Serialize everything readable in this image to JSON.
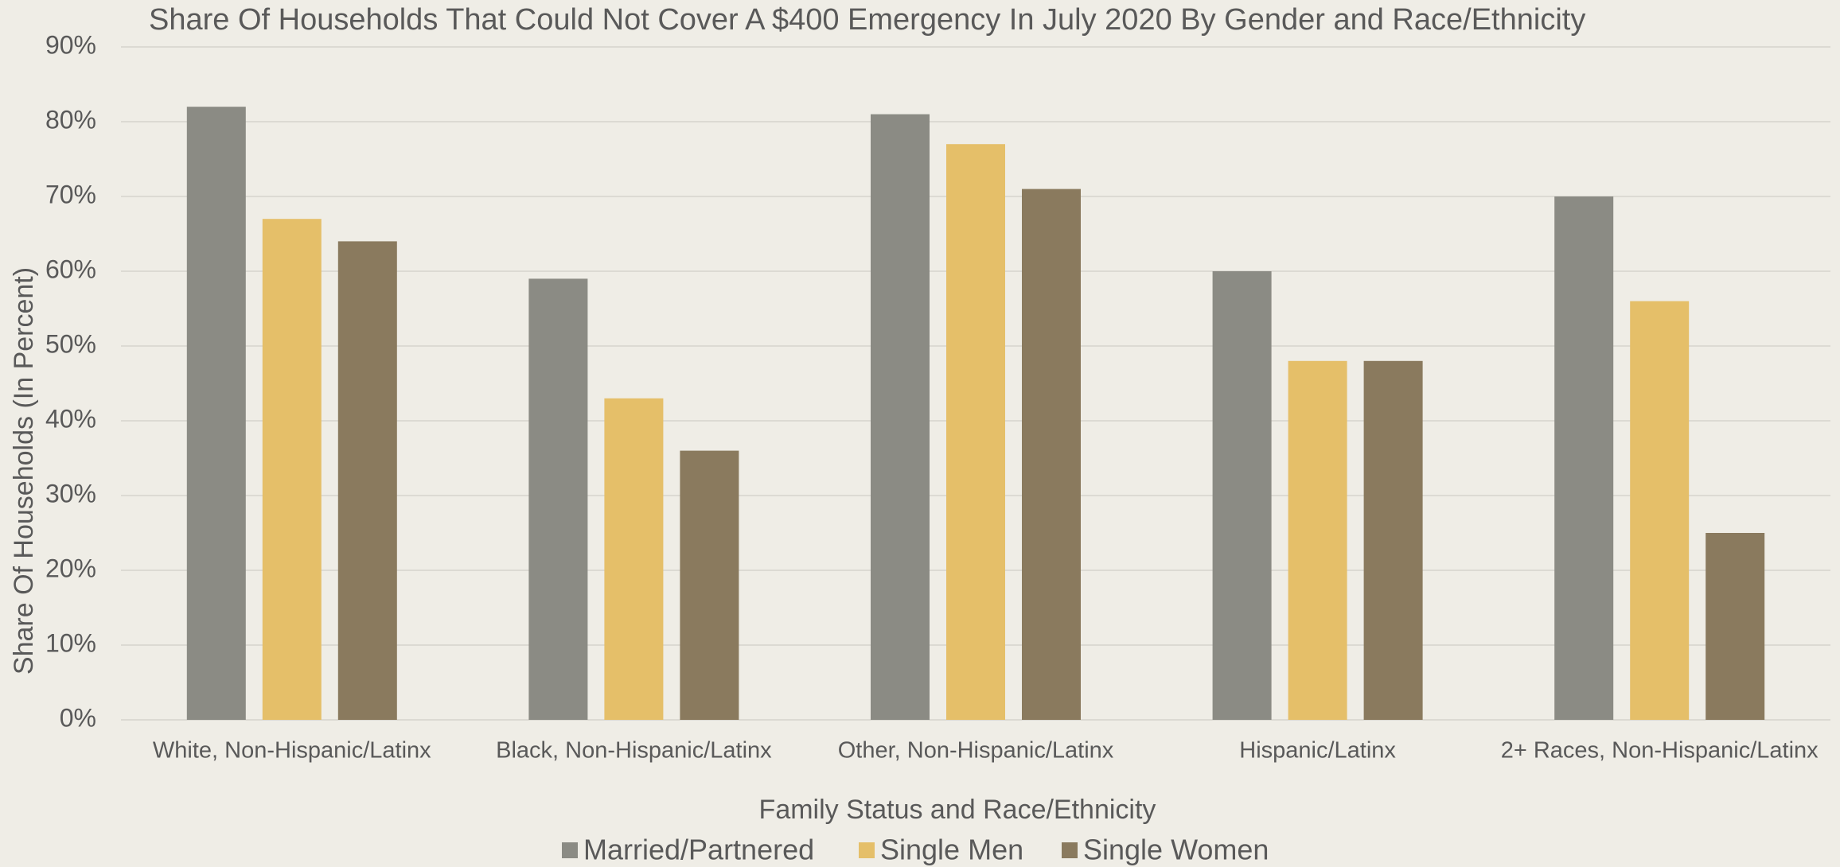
{
  "chart_data": {
    "type": "bar",
    "title": "Share Of Households That Could Not Cover A $400 Emergency In July 2020 By Gender and Race/Ethnicity",
    "x_label": "Family Status and Race/Ethnicity",
    "y_label": "Share Of Households (In Percent)",
    "categories": [
      "White, Non-Hispanic/Latinx",
      "Black, Non-Hispanic/Latinx",
      "Other, Non-Hispanic/Latinx",
      "Hispanic/Latinx",
      "2+ Races, Non-Hispanic/Latinx"
    ],
    "series": [
      {
        "name": "Married/Partnered",
        "color": "#8b8b84",
        "values": [
          82,
          59,
          81,
          60,
          70
        ]
      },
      {
        "name": "Single Men",
        "color": "#e5bf69",
        "values": [
          67,
          43,
          77,
          48,
          56
        ]
      },
      {
        "name": "Single Women",
        "color": "#8a7a5e",
        "values": [
          64,
          36,
          71,
          48,
          25
        ]
      }
    ],
    "ylim": [
      0,
      90
    ],
    "yticks": [
      {
        "value": 0,
        "label": "0%"
      },
      {
        "value": 10,
        "label": "10%"
      },
      {
        "value": 20,
        "label": "20%"
      },
      {
        "value": 30,
        "label": "30%"
      },
      {
        "value": 40,
        "label": "40%"
      },
      {
        "value": 50,
        "label": "50%"
      },
      {
        "value": 60,
        "label": "60%"
      },
      {
        "value": 70,
        "label": "70%"
      },
      {
        "value": 80,
        "label": "80%"
      },
      {
        "value": 90,
        "label": "90%"
      }
    ],
    "grid": true,
    "legend": "bottom"
  }
}
